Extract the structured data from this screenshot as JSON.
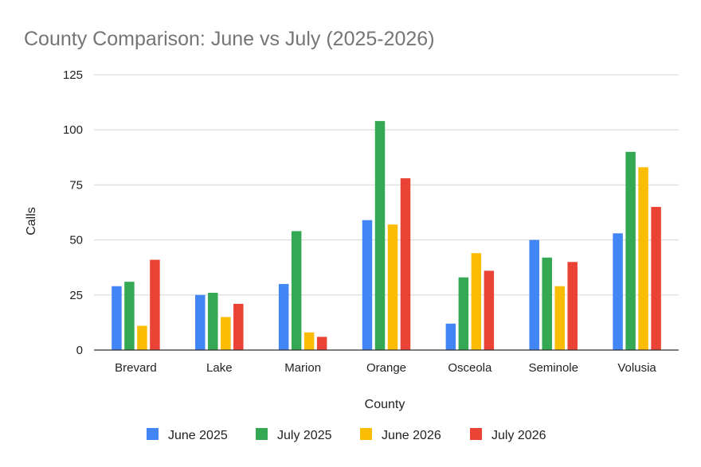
{
  "chart_data": {
    "type": "bar",
    "title": "County Comparison: June vs July (2025-2026)",
    "xlabel": "County",
    "ylabel": "Calls",
    "ylim": [
      0,
      125
    ],
    "yticks": [
      0,
      25,
      50,
      75,
      100,
      125
    ],
    "grid": true,
    "legend_position": "bottom",
    "categories": [
      "Brevard",
      "Lake",
      "Marion",
      "Orange",
      "Osceola",
      "Seminole",
      "Volusia"
    ],
    "series": [
      {
        "name": "June 2025",
        "color": "#4285f4",
        "values": [
          29,
          25,
          30,
          59,
          12,
          50,
          53
        ]
      },
      {
        "name": "July 2025",
        "color": "#34a853",
        "values": [
          31,
          26,
          54,
          104,
          33,
          42,
          90
        ]
      },
      {
        "name": "June 2026",
        "color": "#fbbc04",
        "values": [
          11,
          15,
          8,
          57,
          44,
          29,
          83
        ]
      },
      {
        "name": "July 2026",
        "color": "#ea4335",
        "values": [
          41,
          21,
          6,
          78,
          36,
          40,
          65
        ]
      }
    ]
  }
}
